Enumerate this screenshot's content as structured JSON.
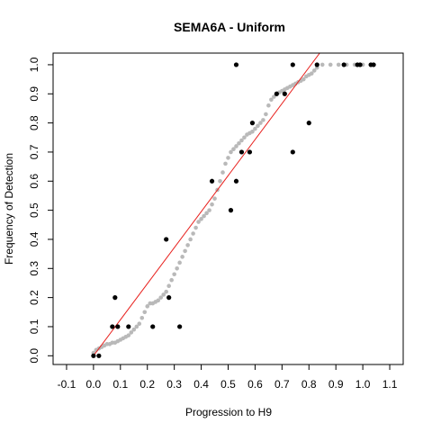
{
  "chart_data": {
    "type": "scatter",
    "title": "SEMA6A - Uniform",
    "xlabel": "Progression to H9",
    "ylabel": "Frequency of Detection",
    "xlim": [
      -0.15,
      1.15
    ],
    "ylim": [
      -0.03,
      1.04
    ],
    "x_ticks": [
      "-0.1",
      "0.0",
      "0.1",
      "0.2",
      "0.3",
      "0.4",
      "0.5",
      "0.6",
      "0.7",
      "0.8",
      "0.9",
      "1.0",
      "1.1"
    ],
    "x_tick_values": [
      -0.1,
      0.0,
      0.1,
      0.2,
      0.3,
      0.4,
      0.5,
      0.6,
      0.7,
      0.8,
      0.9,
      1.0,
      1.1
    ],
    "y_ticks": [
      "0.0",
      "0.1",
      "0.2",
      "0.3",
      "0.4",
      "0.5",
      "0.6",
      "0.7",
      "0.8",
      "0.9",
      "1.0"
    ],
    "y_tick_values": [
      0.0,
      0.1,
      0.2,
      0.3,
      0.4,
      0.5,
      0.6,
      0.7,
      0.8,
      0.9,
      1.0
    ],
    "grid": false,
    "series": [
      {
        "color": "#b9b9b9",
        "x": [
          0.0,
          0.01,
          0.02,
          0.03,
          0.04,
          0.05,
          0.06,
          0.07,
          0.08,
          0.09,
          0.1,
          0.11,
          0.12,
          0.13,
          0.14,
          0.15,
          0.16,
          0.17,
          0.18,
          0.19,
          0.2,
          0.21,
          0.22,
          0.23,
          0.24,
          0.25,
          0.26,
          0.27,
          0.28,
          0.29,
          0.3,
          0.31,
          0.32,
          0.33,
          0.34,
          0.35,
          0.36,
          0.37,
          0.38,
          0.39,
          0.4,
          0.41,
          0.42,
          0.43,
          0.44,
          0.45,
          0.46,
          0.47,
          0.48,
          0.49,
          0.5,
          0.51,
          0.52,
          0.53,
          0.54,
          0.55,
          0.56,
          0.57,
          0.58,
          0.59,
          0.6,
          0.61,
          0.62,
          0.63,
          0.64,
          0.65,
          0.66,
          0.67,
          0.68,
          0.69,
          0.7,
          0.71,
          0.72,
          0.73,
          0.74,
          0.75,
          0.76,
          0.77,
          0.78,
          0.79,
          0.8,
          0.81,
          0.82,
          0.83,
          0.85,
          0.88,
          0.91,
          0.94,
          0.97,
          1.0,
          1.03
        ],
        "y": [
          0.01,
          0.02,
          0.025,
          0.03,
          0.035,
          0.04,
          0.04,
          0.045,
          0.045,
          0.05,
          0.055,
          0.06,
          0.065,
          0.07,
          0.08,
          0.09,
          0.1,
          0.11,
          0.13,
          0.15,
          0.17,
          0.18,
          0.18,
          0.185,
          0.19,
          0.2,
          0.21,
          0.22,
          0.24,
          0.26,
          0.28,
          0.3,
          0.32,
          0.34,
          0.36,
          0.38,
          0.4,
          0.42,
          0.44,
          0.46,
          0.47,
          0.48,
          0.49,
          0.5,
          0.52,
          0.54,
          0.57,
          0.6,
          0.63,
          0.66,
          0.68,
          0.7,
          0.71,
          0.72,
          0.73,
          0.74,
          0.75,
          0.76,
          0.765,
          0.77,
          0.78,
          0.79,
          0.8,
          0.81,
          0.83,
          0.86,
          0.88,
          0.89,
          0.9,
          0.905,
          0.91,
          0.915,
          0.92,
          0.925,
          0.93,
          0.935,
          0.94,
          0.945,
          0.95,
          0.96,
          0.965,
          0.97,
          0.98,
          0.99,
          1.0,
          1.0,
          1.0,
          1.0,
          1.0,
          1.0,
          1.0
        ]
      },
      {
        "color": "#000000",
        "x": [
          0.0,
          0.02,
          0.07,
          0.08,
          0.09,
          0.13,
          0.22,
          0.27,
          0.28,
          0.32,
          0.44,
          0.51,
          0.53,
          0.53,
          0.55,
          0.58,
          0.59,
          0.68,
          0.71,
          0.74,
          0.74,
          0.8,
          0.83,
          0.93,
          0.98,
          0.99,
          1.03,
          1.04
        ],
        "y": [
          0.0,
          0.0,
          0.1,
          0.2,
          0.1,
          0.1,
          0.1,
          0.4,
          0.2,
          0.1,
          0.6,
          0.5,
          0.6,
          1.0,
          0.7,
          0.7,
          0.8,
          0.9,
          0.9,
          0.7,
          1.0,
          0.8,
          1.0,
          1.0,
          1.0,
          1.0,
          1.0,
          1.0
        ]
      },
      {
        "type": "line",
        "color": "#e8211e",
        "x": [
          0.0,
          0.84
        ],
        "y": [
          0.0,
          1.04
        ]
      }
    ]
  }
}
